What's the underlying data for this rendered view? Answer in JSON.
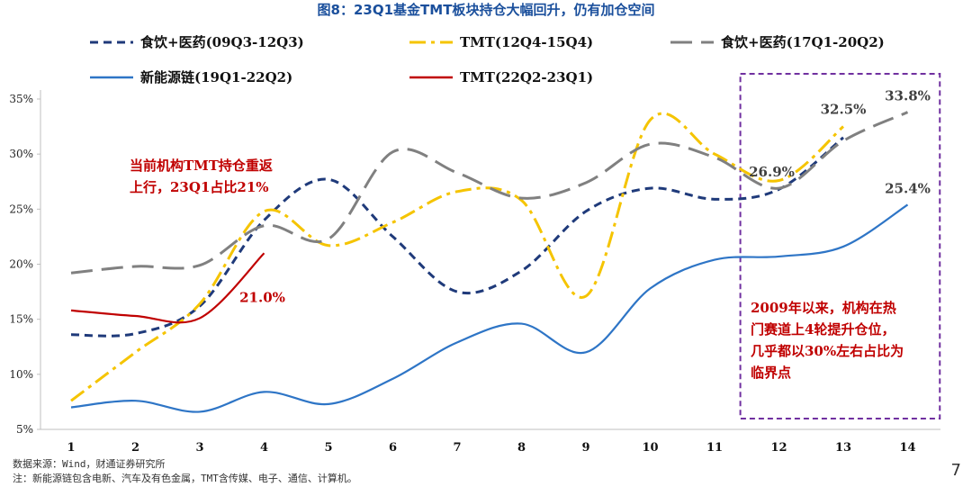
{
  "page": {
    "title": "图8：23Q1基金TMT板块持仓大幅回升，仍有加仓空间",
    "source": "数据来源：Wind，财通证券研究所",
    "note": "注：新能源链包含电新、汽车及有色金属，TMT含传媒、电子、通信、计算机。",
    "page_number": "7"
  },
  "annotations": {
    "left_line1": "当前机构TMT持仓重返",
    "left_line2": "上行，23Q1占比21%",
    "box_line1": "2009年以来，机构在热",
    "box_line2": "门赛道上4轮提升仓位，",
    "box_line3": "几乎都以30%左右占比为",
    "box_line4": "临界点"
  },
  "chart_data": {
    "type": "line",
    "title": "23Q1基金TMT板块持仓大幅回升，仍有加仓空间",
    "xlabel": "",
    "ylabel": "",
    "x": [
      1,
      2,
      3,
      4,
      5,
      6,
      7,
      8,
      9,
      10,
      11,
      12,
      13,
      14
    ],
    "ylim": [
      5,
      35
    ],
    "y_ticks": [
      "5%",
      "10%",
      "15%",
      "20%",
      "25%",
      "30%",
      "35%"
    ],
    "y_tick_values": [
      5,
      10,
      15,
      20,
      25,
      30,
      35
    ],
    "x_tick_labels": [
      "1",
      "2",
      "3",
      "4",
      "5",
      "6",
      "7",
      "8",
      "9",
      "10",
      "11",
      "12",
      "13",
      "14"
    ],
    "highlight_box": {
      "x_from": 11.4,
      "x_to": 14.5,
      "color": "#7030a0"
    },
    "series": [
      {
        "name": "食饮+医药(09Q3-12Q3)",
        "color": "#1f3a7a",
        "dash": "dash",
        "x": [
          1,
          2,
          3,
          4,
          5,
          6,
          7,
          8,
          9,
          10,
          11,
          12,
          13
        ],
        "values": [
          13.6,
          13.7,
          16.2,
          24.0,
          27.7,
          22.5,
          17.5,
          19.4,
          24.8,
          26.9,
          25.9,
          26.8,
          31.5
        ]
      },
      {
        "name": "TMT(12Q4-15Q4)",
        "color": "#f5c400",
        "dash": "dashdot",
        "x": [
          1,
          2,
          3,
          4,
          5,
          6,
          7,
          8,
          9,
          10,
          11,
          12,
          13
        ],
        "values": [
          7.6,
          12.0,
          16.4,
          24.8,
          21.7,
          23.8,
          26.6,
          25.8,
          17.1,
          33.1,
          30.0,
          27.6,
          32.5
        ]
      },
      {
        "name": "食饮+医药(17Q1-20Q2)",
        "color": "#808080",
        "dash": "longdash",
        "x": [
          1,
          2,
          3,
          4,
          5,
          6,
          7,
          8,
          9,
          10,
          11,
          12,
          13,
          14
        ],
        "values": [
          19.2,
          19.8,
          19.9,
          23.5,
          22.3,
          30.2,
          28.3,
          26.0,
          27.4,
          30.9,
          29.7,
          26.9,
          31.2,
          33.8
        ]
      },
      {
        "name": "新能源链(19Q1-22Q2)",
        "color": "#2e75c6",
        "dash": "solid",
        "x": [
          1,
          2,
          3,
          4,
          5,
          6,
          7,
          8,
          9,
          10,
          11,
          12,
          13,
          14
        ],
        "values": [
          7.0,
          7.6,
          6.6,
          8.4,
          7.3,
          9.6,
          12.9,
          14.6,
          12.0,
          17.8,
          20.4,
          20.7,
          21.6,
          25.4
        ]
      },
      {
        "name": "TMT(22Q2-23Q1)",
        "color": "#c00000",
        "dash": "solid",
        "x": [
          1,
          2,
          3,
          4
        ],
        "values": [
          15.8,
          15.3,
          15.1,
          21.0
        ]
      }
    ],
    "data_labels": [
      {
        "text": "33.8%",
        "x": 14,
        "y": 33.8
      },
      {
        "text": "32.5%",
        "x": 13,
        "y": 32.5
      },
      {
        "text": "26.9%",
        "x": 12,
        "y": 26.9
      },
      {
        "text": "25.4%",
        "x": 14,
        "y": 25.4
      },
      {
        "text": "21.0%",
        "x": 4,
        "y": 21.0
      }
    ]
  }
}
